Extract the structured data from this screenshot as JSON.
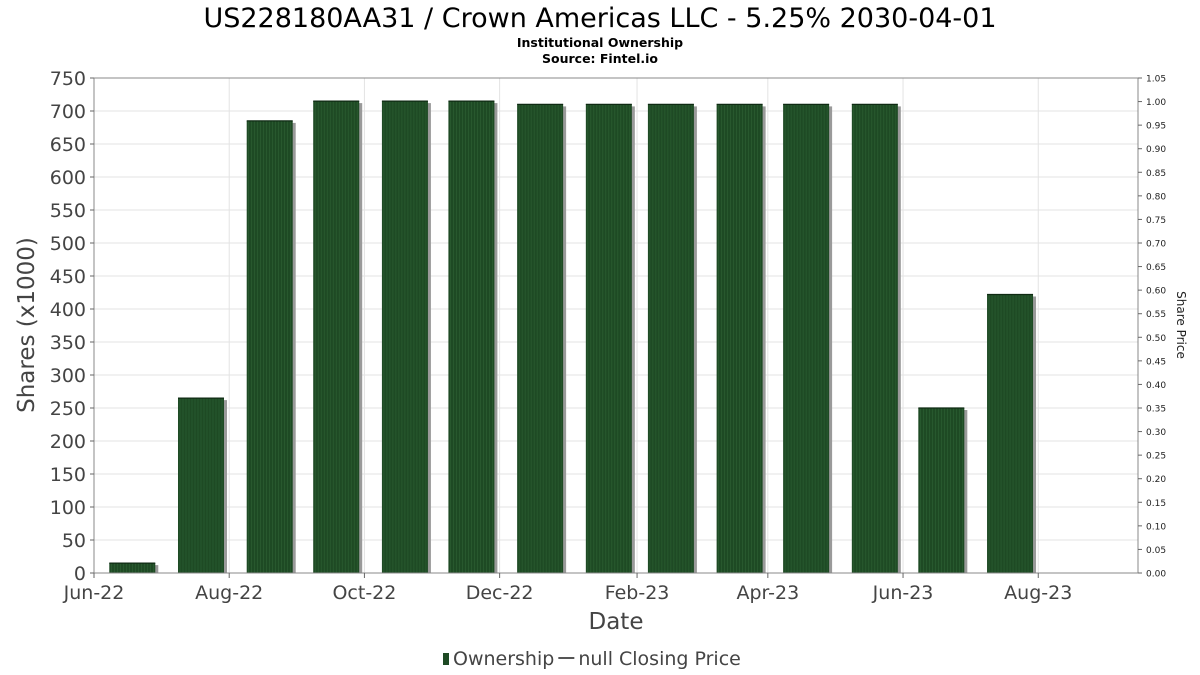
{
  "chart_data": {
    "type": "bar",
    "title": "US228180AA31 / Crown Americas LLC - 5.25% 2030-04-01",
    "subtitle": "Institutional Ownership",
    "source": "Source: Fintel.io",
    "xlabel": "Date",
    "ylabel": "Shares (x1000)",
    "y2label": "Share Price",
    "ylim": [
      0,
      750
    ],
    "y_ticks": [
      0,
      50,
      100,
      150,
      200,
      250,
      300,
      350,
      400,
      450,
      500,
      550,
      600,
      650,
      700,
      750
    ],
    "y2lim": [
      0,
      1.05
    ],
    "y2_ticks": [
      "0.00",
      "0.05",
      "0.10",
      "0.15",
      "0.20",
      "0.25",
      "0.30",
      "0.35",
      "0.40",
      "0.45",
      "0.50",
      "0.55",
      "0.60",
      "0.65",
      "0.70",
      "0.75",
      "0.80",
      "0.85",
      "0.90",
      "0.95",
      "1.00",
      "1.05"
    ],
    "x_range": [
      "2022-06-01",
      "2023-09-15"
    ],
    "x_ticks": [
      {
        "label": "Jun-22",
        "date": "2022-06-01"
      },
      {
        "label": "Aug-22",
        "date": "2022-08-01"
      },
      {
        "label": "Oct-22",
        "date": "2022-10-01"
      },
      {
        "label": "Dec-22",
        "date": "2022-12-01"
      },
      {
        "label": "Feb-23",
        "date": "2023-02-01"
      },
      {
        "label": "Apr-23",
        "date": "2023-04-01"
      },
      {
        "label": "Jun-23",
        "date": "2023-06-01"
      },
      {
        "label": "Aug-23",
        "date": "2023-08-01"
      }
    ],
    "series": [
      {
        "name": "Ownership",
        "color": "#1e4a24",
        "points": [
          {
            "date": "2022-06-30",
            "value": 15
          },
          {
            "date": "2022-07-31",
            "value": 265
          },
          {
            "date": "2022-08-31",
            "value": 685
          },
          {
            "date": "2022-09-30",
            "value": 715
          },
          {
            "date": "2022-10-31",
            "value": 715
          },
          {
            "date": "2022-11-30",
            "value": 715
          },
          {
            "date": "2022-12-31",
            "value": 710
          },
          {
            "date": "2023-01-31",
            "value": 710
          },
          {
            "date": "2023-02-28",
            "value": 710
          },
          {
            "date": "2023-03-31",
            "value": 710
          },
          {
            "date": "2023-04-30",
            "value": 710
          },
          {
            "date": "2023-05-31",
            "value": 710
          },
          {
            "date": "2023-06-30",
            "value": 250
          },
          {
            "date": "2023-07-31",
            "value": 422
          }
        ]
      }
    ],
    "legend": [
      {
        "label": "Ownership",
        "color": "#1e4a24",
        "symbol": "bar"
      },
      {
        "label": "null Closing Price",
        "color": "#555555",
        "symbol": "line"
      }
    ],
    "grid": true,
    "legend_position": "bottom"
  }
}
